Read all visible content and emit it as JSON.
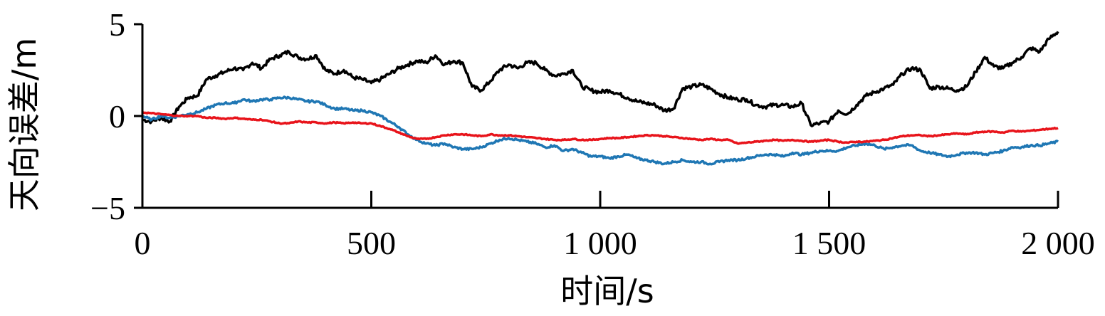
{
  "chart_data": {
    "type": "line",
    "xlabel": "时间/s",
    "ylabel": "天向误差/m",
    "xlim": [
      0,
      2000
    ],
    "ylim": [
      -5,
      5
    ],
    "xticks": [
      0,
      500,
      1000,
      1500,
      2000
    ],
    "xtick_labels": [
      "0",
      "500",
      "1 000",
      "1 500",
      "2 000"
    ],
    "yticks": [
      5,
      0,
      -5
    ],
    "ytick_labels": [
      "5",
      "0",
      "−5"
    ],
    "grid": false,
    "legend": "none",
    "series": [
      {
        "color": "#000000",
        "x": [
          0,
          20,
          40,
          60,
          80,
          100,
          120,
          140,
          160,
          180,
          200,
          220,
          240,
          260,
          280,
          300,
          320,
          340,
          360,
          380,
          400,
          420,
          440,
          460,
          480,
          500,
          520,
          540,
          560,
          580,
          600,
          620,
          640,
          660,
          680,
          700,
          720,
          740,
          760,
          780,
          800,
          820,
          840,
          860,
          880,
          900,
          920,
          940,
          960,
          980,
          1000,
          1020,
          1040,
          1060,
          1080,
          1100,
          1120,
          1140,
          1160,
          1180,
          1200,
          1220,
          1240,
          1260,
          1280,
          1300,
          1320,
          1340,
          1360,
          1380,
          1400,
          1420,
          1440,
          1460,
          1480,
          1500,
          1520,
          1540,
          1560,
          1580,
          1600,
          1620,
          1640,
          1660,
          1680,
          1700,
          1720,
          1740,
          1760,
          1780,
          1800,
          1820,
          1840,
          1860,
          1880,
          1900,
          1920,
          1940,
          1960,
          1980,
          2000
        ],
        "values": [
          -0.2,
          -0.3,
          -0.1,
          -0.3,
          0.5,
          1.0,
          1.1,
          2.0,
          2.2,
          2.4,
          2.6,
          2.5,
          2.9,
          2.6,
          3.1,
          3.3,
          3.5,
          3.2,
          3.1,
          3.3,
          2.5,
          2.3,
          2.5,
          2.1,
          2.0,
          1.8,
          2.0,
          2.3,
          2.6,
          2.8,
          3.0,
          2.9,
          3.3,
          2.8,
          3.0,
          2.9,
          1.6,
          1.4,
          1.9,
          2.5,
          2.8,
          2.6,
          2.9,
          2.9,
          2.5,
          2.2,
          2.3,
          2.5,
          1.6,
          1.4,
          1.3,
          1.4,
          1.2,
          1.0,
          0.8,
          0.7,
          0.6,
          0.3,
          0.4,
          1.5,
          1.6,
          1.7,
          1.5,
          1.2,
          1.0,
          0.9,
          0.9,
          0.6,
          0.5,
          0.6,
          0.6,
          0.5,
          0.7,
          -0.5,
          -0.4,
          -0.3,
          0.3,
          0.1,
          0.6,
          1.1,
          1.3,
          1.5,
          1.7,
          2.3,
          2.6,
          2.5,
          1.5,
          1.6,
          1.5,
          1.4,
          1.6,
          2.4,
          3.2,
          2.7,
          2.6,
          2.9,
          3.2,
          3.7,
          3.5,
          4.2,
          4.6
        ]
      },
      {
        "color": "#1f77b4",
        "x": [
          0,
          20,
          40,
          60,
          80,
          100,
          120,
          140,
          160,
          180,
          200,
          220,
          240,
          260,
          280,
          300,
          320,
          340,
          360,
          380,
          400,
          420,
          440,
          460,
          480,
          500,
          520,
          540,
          560,
          580,
          600,
          620,
          640,
          660,
          680,
          700,
          720,
          740,
          760,
          780,
          800,
          820,
          840,
          860,
          880,
          900,
          920,
          940,
          960,
          980,
          1000,
          1020,
          1040,
          1060,
          1080,
          1100,
          1120,
          1140,
          1160,
          1180,
          1200,
          1220,
          1240,
          1260,
          1280,
          1300,
          1320,
          1340,
          1360,
          1380,
          1400,
          1420,
          1440,
          1460,
          1480,
          1500,
          1520,
          1540,
          1560,
          1580,
          1600,
          1620,
          1640,
          1660,
          1680,
          1700,
          1720,
          1740,
          1760,
          1780,
          1800,
          1820,
          1840,
          1860,
          1880,
          1900,
          1920,
          1940,
          1960,
          1980,
          2000
        ],
        "values": [
          0.0,
          -0.2,
          0.0,
          -0.1,
          0.0,
          0.1,
          0.2,
          0.4,
          0.6,
          0.7,
          0.7,
          0.9,
          0.8,
          0.9,
          0.9,
          1.0,
          1.0,
          0.9,
          0.8,
          0.8,
          0.6,
          0.4,
          0.4,
          0.3,
          0.3,
          0.2,
          0.0,
          -0.3,
          -0.6,
          -1.0,
          -1.3,
          -1.5,
          -1.6,
          -1.5,
          -1.7,
          -1.8,
          -1.8,
          -1.7,
          -1.5,
          -1.3,
          -1.2,
          -1.3,
          -1.4,
          -1.5,
          -1.7,
          -1.6,
          -1.9,
          -1.8,
          -2.0,
          -2.2,
          -2.2,
          -2.3,
          -2.2,
          -2.1,
          -2.3,
          -2.4,
          -2.5,
          -2.6,
          -2.5,
          -2.4,
          -2.5,
          -2.5,
          -2.6,
          -2.5,
          -2.4,
          -2.4,
          -2.3,
          -2.2,
          -2.1,
          -2.1,
          -2.2,
          -2.0,
          -2.1,
          -2.0,
          -1.9,
          -1.9,
          -1.9,
          -1.7,
          -1.6,
          -1.5,
          -1.6,
          -1.8,
          -1.7,
          -1.6,
          -1.6,
          -1.9,
          -2.0,
          -2.1,
          -2.2,
          -2.1,
          -2.0,
          -2.0,
          -2.1,
          -2.0,
          -1.9,
          -1.7,
          -1.7,
          -1.6,
          -1.6,
          -1.5,
          -1.4
        ]
      },
      {
        "color": "#e8141b",
        "x": [
          0,
          20,
          40,
          60,
          80,
          100,
          120,
          140,
          160,
          180,
          200,
          220,
          240,
          260,
          280,
          300,
          320,
          340,
          360,
          380,
          400,
          420,
          440,
          460,
          480,
          500,
          520,
          540,
          560,
          580,
          600,
          620,
          640,
          660,
          680,
          700,
          720,
          740,
          760,
          780,
          800,
          820,
          840,
          860,
          880,
          900,
          920,
          940,
          960,
          980,
          1000,
          1020,
          1040,
          1060,
          1080,
          1100,
          1120,
          1140,
          1160,
          1180,
          1200,
          1220,
          1240,
          1260,
          1280,
          1300,
          1320,
          1340,
          1360,
          1380,
          1400,
          1420,
          1440,
          1460,
          1480,
          1500,
          1520,
          1540,
          1560,
          1580,
          1600,
          1620,
          1640,
          1660,
          1680,
          1700,
          1720,
          1740,
          1760,
          1780,
          1800,
          1820,
          1840,
          1860,
          1880,
          1900,
          1920,
          1940,
          1960,
          1980,
          2000
        ],
        "values": [
          0.2,
          0.15,
          0.1,
          0.05,
          0.0,
          0.0,
          0.0,
          -0.1,
          -0.1,
          -0.15,
          -0.1,
          -0.15,
          -0.2,
          -0.2,
          -0.3,
          -0.4,
          -0.4,
          -0.3,
          -0.35,
          -0.35,
          -0.4,
          -0.35,
          -0.4,
          -0.35,
          -0.4,
          -0.4,
          -0.55,
          -0.7,
          -0.9,
          -1.1,
          -1.25,
          -1.25,
          -1.15,
          -1.05,
          -1.0,
          -1.0,
          -1.05,
          -1.1,
          -1.0,
          -1.05,
          -1.05,
          -1.1,
          -1.15,
          -1.2,
          -1.25,
          -1.3,
          -1.3,
          -1.25,
          -1.3,
          -1.3,
          -1.25,
          -1.2,
          -1.2,
          -1.15,
          -1.1,
          -1.05,
          -1.05,
          -1.1,
          -1.15,
          -1.2,
          -1.25,
          -1.3,
          -1.25,
          -1.3,
          -1.3,
          -1.5,
          -1.45,
          -1.4,
          -1.35,
          -1.3,
          -1.35,
          -1.3,
          -1.35,
          -1.4,
          -1.35,
          -1.3,
          -1.4,
          -1.45,
          -1.4,
          -1.4,
          -1.35,
          -1.3,
          -1.2,
          -1.1,
          -1.05,
          -1.05,
          -1.1,
          -1.05,
          -1.0,
          -0.95,
          -1.0,
          -0.9,
          -0.85,
          -0.85,
          -0.9,
          -0.8,
          -0.85,
          -0.8,
          -0.75,
          -0.7,
          -0.65
        ]
      }
    ]
  }
}
